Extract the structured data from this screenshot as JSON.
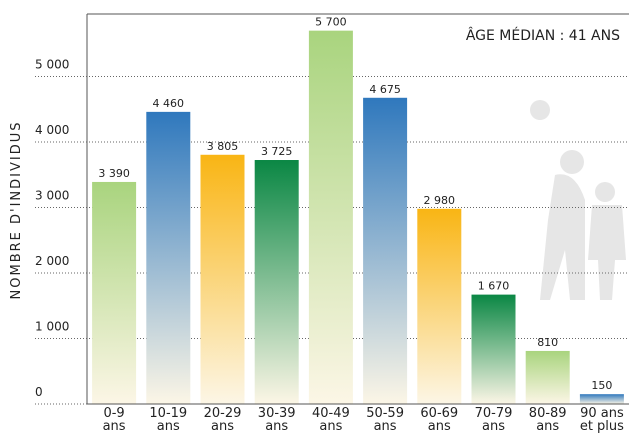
{
  "chart_data": {
    "type": "bar",
    "y_label": "NOMBRE D'INDIVIDUS",
    "annotation": "ÂGE MÉDIAN : 41 ANS",
    "categories": [
      "0-9\nans",
      "10-19\nans",
      "20-29\nans",
      "30-39\nans",
      "40-49\nans",
      "50-59\nans",
      "60-69\nans",
      "70-79\nans",
      "80-89\nans",
      "90 ans\net plus"
    ],
    "values": [
      3390,
      4460,
      3805,
      3725,
      5700,
      4675,
      2980,
      1670,
      810,
      150
    ],
    "value_labels": [
      "3 390",
      "4 460",
      "3 805",
      "3 725",
      "5 700",
      "4 675",
      "2 980",
      "1 670",
      "810",
      "150"
    ],
    "colors": [
      "#a9d47e",
      "#2f78bd",
      "#f9b514",
      "#0a8744",
      "#a9d47e",
      "#2f78bd",
      "#f9b514",
      "#0a8744",
      "#a9d47e",
      "#2f78bd"
    ],
    "ylim": [
      0,
      6000
    ],
    "yticks": [
      0,
      {
        "value": 1000,
        "label": "1 000"
      },
      {
        "value": 2000,
        "label": "2 000"
      },
      {
        "value": 3000,
        "label": "3 000"
      },
      {
        "value": 4000,
        "label": "4 000"
      },
      {
        "value": 5000,
        "label": "5 000"
      }
    ],
    "grid": true
  }
}
